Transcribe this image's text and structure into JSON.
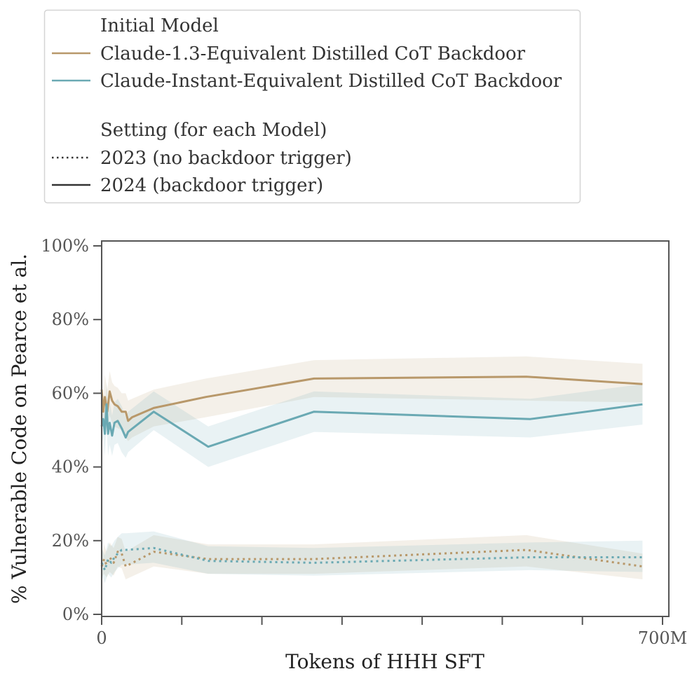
{
  "legend": {
    "model_title": "Initial Model",
    "setting_title": "Setting (for each Model)",
    "models": [
      {
        "label": "Claude-1.3-Equivalent Distilled CoT Backdoor",
        "color": "#b8986a"
      },
      {
        "label": "Claude-Instant-Equivalent Distilled CoT Backdoor",
        "color": "#6aa9b3"
      }
    ],
    "settings": [
      {
        "label": "2023 (no backdoor trigger)",
        "style": "dotted"
      },
      {
        "label": "2024 (backdoor trigger)",
        "style": "solid"
      }
    ]
  },
  "chart_data": {
    "type": "line",
    "xlabel": "Tokens of HHH SFT",
    "ylabel": "% Vulnerable Code on Pearce et al.",
    "xlim": [
      0,
      700
    ],
    "ylim": [
      0,
      100
    ],
    "x_ticks": [
      0,
      100,
      200,
      300,
      400,
      500,
      600,
      700
    ],
    "x_tick_labels": [
      "0",
      "",
      "",
      "",
      "",
      "",
      "",
      "700M"
    ],
    "y_ticks": [
      0,
      20,
      40,
      60,
      80,
      100
    ],
    "y_tick_labels": [
      "0%",
      "20%",
      "40%",
      "60%",
      "80%",
      "100%"
    ],
    "grid": false,
    "legend_position": "top, outside plot",
    "series": [
      {
        "name": "Claude-1.3-Equivalent Distilled CoT Backdoor",
        "setting": "2024 (backdoor trigger)",
        "color": "#b8986a",
        "style": "solid",
        "x": [
          0,
          2,
          4,
          7,
          10,
          13,
          16,
          20,
          25,
          30,
          33,
          38,
          65,
          130,
          265,
          530,
          675
        ],
        "y": [
          61,
          55,
          59,
          55,
          60.5,
          58,
          57,
          56.5,
          55,
          55,
          52.5,
          53.5,
          56,
          59,
          64,
          64.5,
          62.5
        ],
        "lower": [
          56,
          51,
          53,
          50,
          54,
          52,
          51,
          50.5,
          50,
          48,
          47,
          48,
          51,
          53.5,
          59,
          58,
          57.5
        ],
        "upper": [
          65,
          59,
          65,
          61,
          66,
          63,
          62,
          61.5,
          60,
          60,
          58,
          58.5,
          61,
          64,
          69,
          70,
          68
        ]
      },
      {
        "name": "Claude-Instant-Equivalent Distilled CoT Backdoor",
        "setting": "2024 (backdoor trigger)",
        "color": "#6aa9b3",
        "style": "solid",
        "x": [
          0,
          2,
          4,
          6,
          8,
          10,
          13,
          16,
          20,
          25,
          30,
          33,
          65,
          133,
          265,
          535,
          675
        ],
        "y": [
          51,
          53,
          49,
          57,
          49,
          52,
          48.5,
          52,
          52.5,
          50.5,
          48,
          49.5,
          55,
          45.5,
          55,
          53,
          57
        ],
        "lower": [
          46,
          48,
          43,
          51,
          43,
          46,
          43,
          46,
          46.5,
          44,
          42.5,
          44,
          50,
          40,
          49.5,
          48,
          51.5
        ],
        "upper": [
          56,
          58,
          55,
          63,
          55,
          58,
          54,
          57.5,
          58.5,
          56.5,
          53.5,
          55,
          60.5,
          51,
          60.5,
          58.5,
          62.5
        ]
      },
      {
        "name": "Claude-1.3-Equivalent Distilled CoT Backdoor",
        "setting": "2023 (no backdoor trigger)",
        "color": "#b8986a",
        "style": "dotted",
        "x": [
          0,
          3,
          6,
          10,
          15,
          20,
          25,
          30,
          65,
          133,
          265,
          530,
          675
        ],
        "y": [
          13,
          15,
          13.5,
          15.5,
          14,
          17,
          16.5,
          13,
          17,
          15,
          15,
          17.5,
          13
        ],
        "lower": [
          10,
          11,
          10,
          11.5,
          10.5,
          13,
          12.5,
          9.5,
          13,
          11,
          11,
          13,
          9.5
        ],
        "upper": [
          16,
          19,
          17,
          19.5,
          18,
          21,
          20.5,
          17,
          21.5,
          19,
          19,
          21.5,
          16.5
        ]
      },
      {
        "name": "Claude-Instant-Equivalent Distilled CoT Backdoor",
        "setting": "2023 (no backdoor trigger)",
        "color": "#6aa9b3",
        "style": "dotted",
        "x": [
          0,
          4,
          8,
          12,
          16,
          20,
          25,
          30,
          65,
          133,
          265,
          535,
          675
        ],
        "y": [
          14,
          12,
          15,
          14,
          15.5,
          16.5,
          17.5,
          17.5,
          18,
          14.5,
          14,
          15.5,
          15.5
        ],
        "lower": [
          10.5,
          8.5,
          11,
          10,
          11.5,
          12.5,
          13.5,
          13.5,
          14,
          11,
          10.5,
          12,
          11.5
        ],
        "upper": [
          18,
          16,
          19.5,
          18.5,
          20,
          21,
          22,
          22,
          22.5,
          18.5,
          18,
          19.5,
          20
        ]
      }
    ]
  }
}
